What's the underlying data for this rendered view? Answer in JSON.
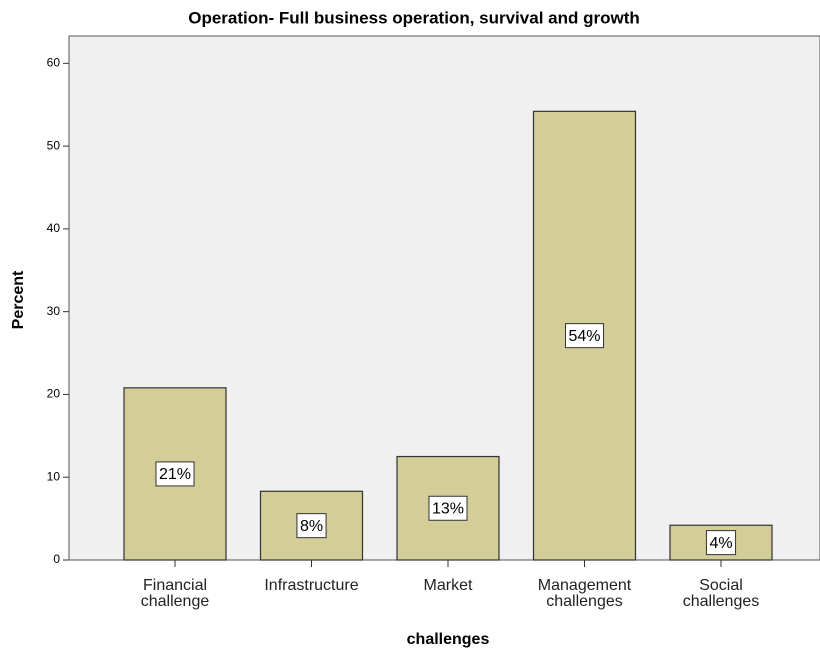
{
  "chart_data": {
    "type": "bar",
    "title": "Operation- Full business operation, survival and growth",
    "x_label": "challenges",
    "y_label": "Percent",
    "categories": [
      "Financial\nchallenge",
      "Infrastructure",
      "Market",
      "Management\nchallenges",
      "Social\nchallenges"
    ],
    "values": [
      20.8,
      8.3,
      12.5,
      54.2,
      4.2
    ],
    "value_labels": [
      "21%",
      "8%",
      "13%",
      "54%",
      "4%"
    ],
    "color": "#d3ce97",
    "ylim": [
      0,
      63.3
    ],
    "yticks": [
      0,
      10,
      20,
      30,
      40,
      50,
      60
    ]
  }
}
